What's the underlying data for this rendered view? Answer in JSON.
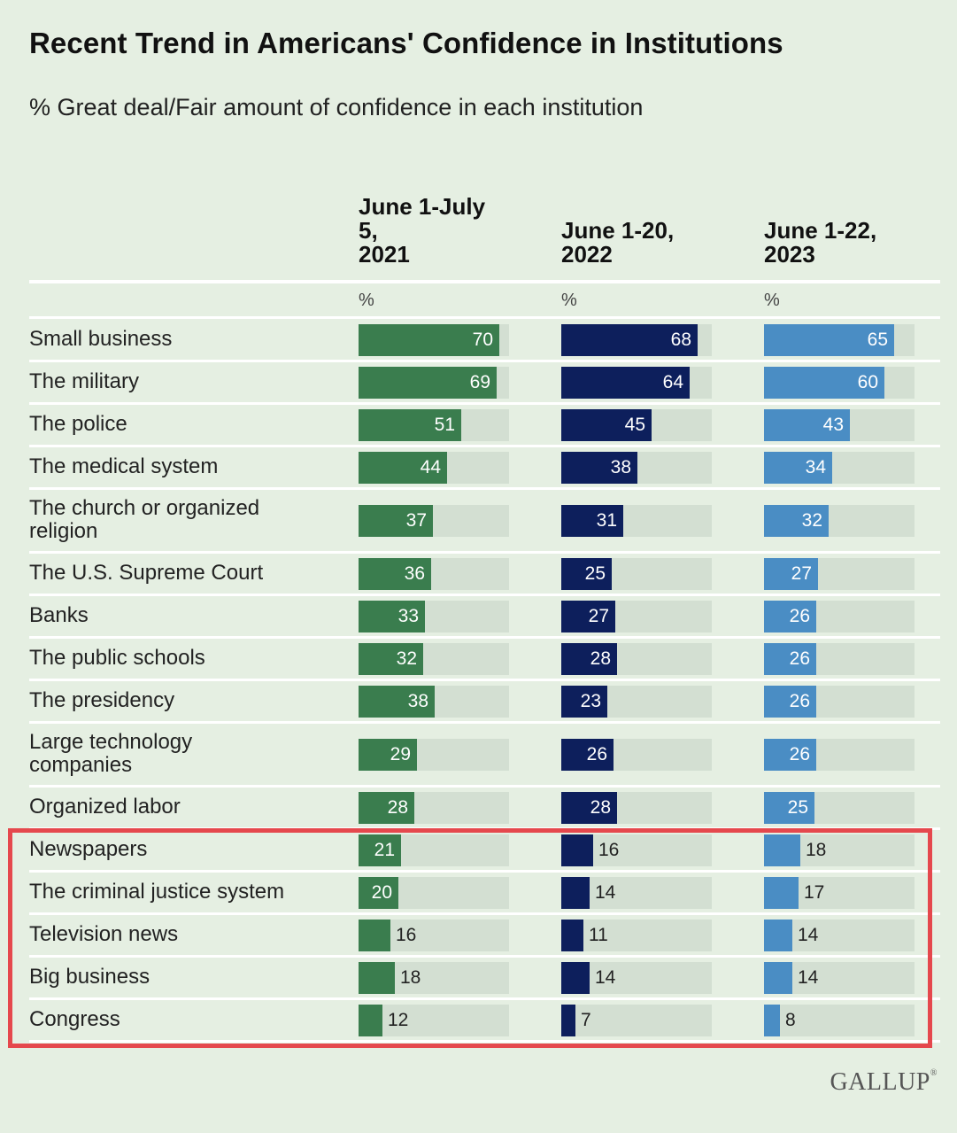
{
  "title": "Recent Trend in Americans' Confidence in Institutions",
  "subtitle": "% Great deal/Fair amount of confidence in each institution",
  "brand": "GALLUP",
  "brand_mark": "®",
  "unit_label": "%",
  "colors": {
    "2021": "#3a7d4e",
    "2022": "#0d1f5c",
    "2023": "#4a8dc4",
    "track": "#d3dfd2",
    "highlight": "#e5484d"
  },
  "chart_data": {
    "type": "bar",
    "title": "Recent Trend in Americans' Confidence in Institutions",
    "subtitle": "% Great deal/Fair amount of confidence in each institution",
    "ylim": [
      0,
      100
    ],
    "categories": [
      "Small business",
      "The military",
      "The police",
      "The medical system",
      "The church or organized\nreligion",
      "The U.S. Supreme Court",
      "Banks",
      "The public schools",
      "The presidency",
      "Large technology\ncompanies",
      "Organized labor",
      "Newspapers",
      "The criminal justice system",
      "Television news",
      "Big business",
      "Congress"
    ],
    "series": [
      {
        "name": "June 1-July\n5,\n2021",
        "values": [
          70,
          69,
          51,
          44,
          37,
          36,
          33,
          32,
          38,
          29,
          28,
          21,
          20,
          16,
          18,
          12
        ]
      },
      {
        "name": "June 1-20,\n2022",
        "values": [
          68,
          64,
          45,
          38,
          31,
          25,
          27,
          28,
          23,
          26,
          28,
          16,
          14,
          11,
          14,
          7
        ]
      },
      {
        "name": "June 1-22,\n2023",
        "values": [
          65,
          60,
          43,
          34,
          32,
          27,
          26,
          26,
          26,
          26,
          25,
          18,
          17,
          14,
          14,
          8
        ]
      }
    ]
  }
}
